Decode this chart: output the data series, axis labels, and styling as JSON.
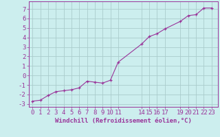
{
  "x": [
    0,
    1,
    2,
    3,
    4,
    5,
    6,
    7,
    8,
    9,
    10,
    11,
    14,
    15,
    16,
    17,
    19,
    20,
    21,
    22,
    23
  ],
  "y": [
    -2.7,
    -2.6,
    -2.1,
    -1.7,
    -1.6,
    -1.5,
    -1.3,
    -0.6,
    -0.7,
    -0.8,
    -0.5,
    1.4,
    3.3,
    4.1,
    4.4,
    4.9,
    5.7,
    6.3,
    6.4,
    7.1,
    7.1
  ],
  "line_color": "#993399",
  "marker": "+",
  "bg_color": "#cceeee",
  "grid_color": "#aacccc",
  "xlabel": "Windchill (Refroidissement éolien,°C)",
  "ylabel": "",
  "xlim": [
    -0.5,
    23.8
  ],
  "ylim": [
    -3.3,
    7.8
  ],
  "xticks": [
    0,
    1,
    2,
    3,
    4,
    5,
    6,
    7,
    8,
    9,
    10,
    11,
    14,
    15,
    16,
    17,
    19,
    20,
    21,
    22,
    23
  ],
  "yticks": [
    -3,
    -2,
    -1,
    0,
    1,
    2,
    3,
    4,
    5,
    6,
    7
  ],
  "xlabel_fontsize": 6.5,
  "tick_fontsize": 6.5,
  "line_width": 0.8,
  "marker_size": 3.5
}
